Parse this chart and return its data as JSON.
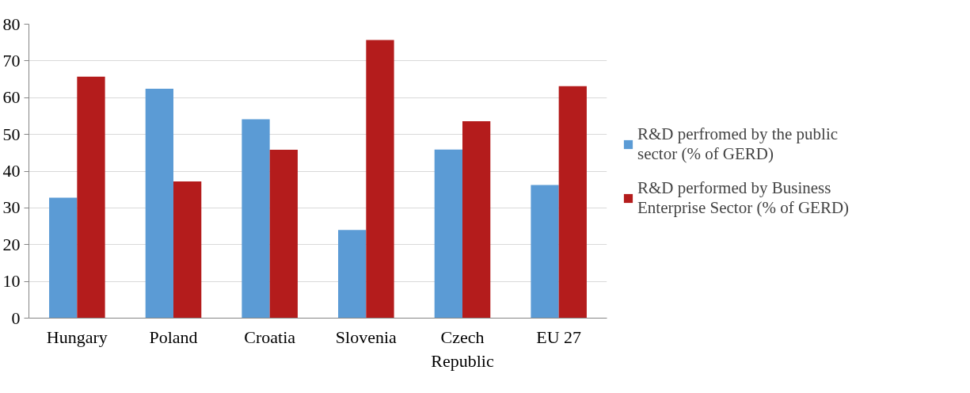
{
  "chart_data": {
    "type": "bar",
    "categories": [
      "Hungary",
      "Poland",
      "Croatia",
      "Slovenia",
      "Czech Republic",
      "EU 27"
    ],
    "series": [
      {
        "name": "R&D perfromed by the public sector (% of GERD)",
        "color": "#5b9bd5",
        "values": [
          32.8,
          62.4,
          54.1,
          24.0,
          45.9,
          36.2
        ]
      },
      {
        "name": "R&D performed by Business Enterprise Sector (% of GERD)",
        "color": "#b41c1c",
        "values": [
          65.7,
          37.2,
          45.8,
          75.7,
          53.6,
          63.1
        ]
      }
    ],
    "ylim": [
      0,
      80
    ],
    "yticks": [
      0,
      10,
      20,
      30,
      40,
      50,
      60,
      70,
      80
    ],
    "grid": "y",
    "legend": "right"
  }
}
